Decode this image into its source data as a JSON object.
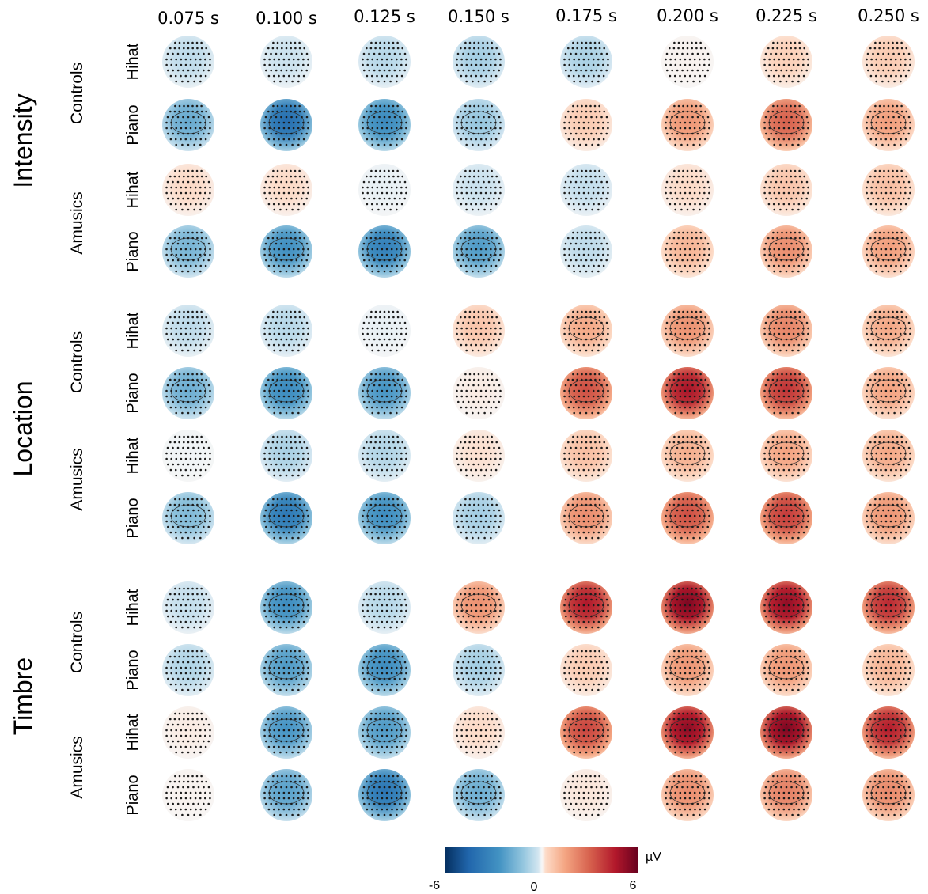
{
  "chart_data": {
    "type": "heatmap",
    "title": "",
    "time_points": [
      "0.075 s",
      "0.100 s",
      "0.125 s",
      "0.150 s",
      "0.175 s",
      "0.200 s",
      "0.225 s",
      "0.250 s"
    ],
    "features": [
      "Intensity",
      "Location",
      "Timbre"
    ],
    "groups": [
      "Controls",
      "Amusics"
    ],
    "sounds": [
      "Hihat",
      "Piano"
    ],
    "colorbar": {
      "min": -6,
      "max": 6,
      "min_label": "-6",
      "mid_label": "0",
      "max_label": "6",
      "unit": "µV",
      "colormap": "RdBu_r"
    },
    "rows": [
      {
        "feature": "Intensity",
        "group": "Controls",
        "sound": "Hihat",
        "values": [
          -0.8,
          -0.6,
          -0.9,
          -1.2,
          -1.1,
          0.1,
          0.7,
          0.8
        ]
      },
      {
        "feature": "Intensity",
        "group": "Controls",
        "sound": "Piano",
        "values": [
          -2.3,
          -4.5,
          -3.4,
          -1.4,
          0.8,
          1.8,
          3.0,
          1.6
        ]
      },
      {
        "feature": "Intensity",
        "group": "Amusics",
        "sound": "Hihat",
        "values": [
          0.5,
          0.5,
          -0.2,
          -0.6,
          -0.7,
          0.5,
          0.9,
          1.0
        ]
      },
      {
        "feature": "Intensity",
        "group": "Amusics",
        "sound": "Piano",
        "values": [
          -2.0,
          -3.2,
          -3.8,
          -2.8,
          -0.8,
          1.2,
          2.0,
          1.6
        ]
      },
      {
        "feature": "Location",
        "group": "Controls",
        "sound": "Hihat",
        "values": [
          -0.8,
          -0.9,
          -0.2,
          0.9,
          1.4,
          1.9,
          2.2,
          1.4
        ]
      },
      {
        "feature": "Location",
        "group": "Controls",
        "sound": "Piano",
        "values": [
          -2.2,
          -3.4,
          -3.0,
          0.2,
          3.4,
          4.8,
          4.0,
          1.5
        ]
      },
      {
        "feature": "Location",
        "group": "Amusics",
        "sound": "Hihat",
        "values": [
          -0.1,
          -1.1,
          -1.0,
          0.4,
          1.0,
          1.3,
          1.5,
          1.4
        ]
      },
      {
        "feature": "Location",
        "group": "Amusics",
        "sound": "Piano",
        "values": [
          -1.8,
          -4.1,
          -3.3,
          -1.2,
          2.0,
          3.4,
          3.8,
          1.8
        ]
      },
      {
        "feature": "Timbre",
        "group": "Controls",
        "sound": "Hihat",
        "values": [
          -0.7,
          -3.3,
          -0.9,
          1.9,
          4.6,
          5.6,
          5.2,
          4.2
        ]
      },
      {
        "feature": "Timbre",
        "group": "Controls",
        "sound": "Piano",
        "values": [
          -1.0,
          -2.8,
          -3.3,
          -1.2,
          0.8,
          1.8,
          1.8,
          1.2
        ]
      },
      {
        "feature": "Timbre",
        "group": "Amusics",
        "sound": "Hihat",
        "values": [
          0.2,
          -3.0,
          -2.8,
          0.5,
          3.6,
          5.3,
          5.6,
          4.5
        ]
      },
      {
        "feature": "Timbre",
        "group": "Amusics",
        "sound": "Piano",
        "values": [
          0.1,
          -2.6,
          -4.2,
          -2.2,
          0.3,
          2.0,
          2.3,
          2.1
        ]
      }
    ]
  }
}
